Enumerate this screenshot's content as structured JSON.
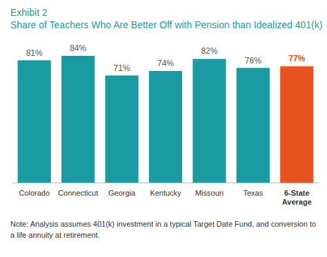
{
  "chart_data": {
    "type": "bar",
    "title": "Exhibit 2",
    "subtitle": "Share of Teachers Who Are Better Off with Pension than Idealized 401(k)",
    "categories": [
      "Colorado",
      "Connecticut",
      "Georgia",
      "Kentucky",
      "Missouri",
      "Texas",
      "6-State Average"
    ],
    "values": [
      81,
      84,
      71,
      74,
      82,
      76,
      77
    ],
    "value_labels": [
      "81%",
      "84%",
      "71%",
      "74%",
      "82%",
      "76%",
      "77%"
    ],
    "colors": [
      "#1a9ba1",
      "#1a9ba1",
      "#1a9ba1",
      "#1a9ba1",
      "#1a9ba1",
      "#1a9ba1",
      "#e8521f"
    ],
    "ylim": [
      0,
      100
    ],
    "grid": false,
    "data_labels": true,
    "tick_labels": "x",
    "note": "Note: Analysis assumes 401(k) investment in a typical Target Date Fund, and conversion to a life annuity at retirement."
  }
}
